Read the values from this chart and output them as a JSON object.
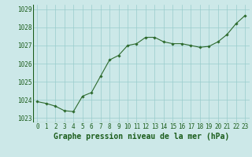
{
  "x": [
    0,
    1,
    2,
    3,
    4,
    5,
    6,
    7,
    8,
    9,
    10,
    11,
    12,
    13,
    14,
    15,
    16,
    17,
    18,
    19,
    20,
    21,
    22,
    23
  ],
  "y": [
    1023.9,
    1023.8,
    1023.65,
    1023.4,
    1023.35,
    1024.2,
    1024.4,
    1025.3,
    1026.2,
    1026.45,
    1027.0,
    1027.1,
    1027.45,
    1027.45,
    1027.2,
    1027.1,
    1027.1,
    1027.0,
    1026.9,
    1026.95,
    1027.2,
    1027.6,
    1028.2,
    1028.65
  ],
  "line_color": "#2d6a2d",
  "marker_color": "#2d6a2d",
  "bg_color": "#cce8e8",
  "grid_color": "#99cccc",
  "title": "Graphe pression niveau de la mer (hPa)",
  "ylim_min": 1022.75,
  "ylim_max": 1029.25,
  "yticks": [
    1023,
    1024,
    1025,
    1026,
    1027,
    1028,
    1029
  ],
  "xticks": [
    0,
    1,
    2,
    3,
    4,
    5,
    6,
    7,
    8,
    9,
    10,
    11,
    12,
    13,
    14,
    15,
    16,
    17,
    18,
    19,
    20,
    21,
    22,
    23
  ],
  "title_color": "#1a5c1a",
  "title_fontsize": 7.0,
  "tick_fontsize": 5.5
}
